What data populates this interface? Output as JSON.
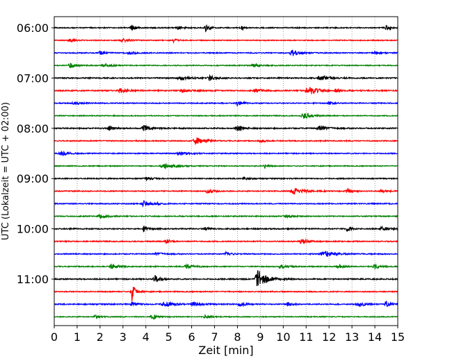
{
  "chart_data": {
    "type": "line",
    "subtype": "helicorder",
    "xlabel": "Zeit  [min]",
    "ylabel": "UTC (Lokalzeit = UTC + 02:00)",
    "xlim": [
      0,
      15
    ],
    "x_ticks": [
      "0",
      "1",
      "2",
      "3",
      "4",
      "5",
      "6",
      "7",
      "8",
      "9",
      "10",
      "11",
      "12",
      "13",
      "14",
      "15"
    ],
    "y_ticks": [
      {
        "label": "06:00",
        "row": 0
      },
      {
        "label": "07:00",
        "row": 4
      },
      {
        "label": "08:00",
        "row": 8
      },
      {
        "label": "09:00",
        "row": 12
      },
      {
        "label": "10:00",
        "row": 16
      },
      {
        "label": "11:00",
        "row": 20
      }
    ],
    "grid": "vertical dotted lines at each minute",
    "row_interval_minutes": 15,
    "row_colors": [
      "#000000",
      "#ff0000",
      "#0000ff",
      "#008000"
    ],
    "rows": [
      {
        "noise": 0.7,
        "events": [
          {
            "t": 3.4,
            "a": 4.5,
            "d": 0.4
          },
          {
            "t": 5.4,
            "a": 2.0,
            "d": 0.5
          },
          {
            "t": 6.6,
            "a": 5.5,
            "d": 0.3
          },
          {
            "t": 8.2,
            "a": 5.5,
            "d": 0.15
          },
          {
            "t": 14.5,
            "a": 4.5,
            "d": 0.3
          }
        ]
      },
      {
        "noise": 0.6,
        "events": [
          {
            "t": 0.7,
            "a": 2.0,
            "d": 0.5
          },
          {
            "t": 3.0,
            "a": 2.5,
            "d": 0.6
          },
          {
            "t": 5.2,
            "a": 3.0,
            "d": 0.3
          }
        ]
      },
      {
        "noise": 0.7,
        "events": [
          {
            "t": 2.0,
            "a": 3.0,
            "d": 0.4
          },
          {
            "t": 3.3,
            "a": 2.0,
            "d": 0.6
          },
          {
            "t": 10.4,
            "a": 4.5,
            "d": 0.6
          },
          {
            "t": 14.0,
            "a": 2.5,
            "d": 0.5
          }
        ]
      },
      {
        "noise": 0.6,
        "events": [
          {
            "t": 0.7,
            "a": 3.5,
            "d": 0.5
          },
          {
            "t": 2.2,
            "a": 2.5,
            "d": 0.6
          },
          {
            "t": 8.7,
            "a": 2.5,
            "d": 0.6
          }
        ]
      },
      {
        "noise": 0.8,
        "events": [
          {
            "t": 5.5,
            "a": 2.5,
            "d": 0.8
          },
          {
            "t": 6.8,
            "a": 3.5,
            "d": 0.5
          },
          {
            "t": 11.6,
            "a": 4.0,
            "d": 0.6
          }
        ]
      },
      {
        "noise": 0.8,
        "events": [
          {
            "t": 2.9,
            "a": 3.0,
            "d": 0.6
          },
          {
            "t": 5.6,
            "a": 2.5,
            "d": 0.5
          },
          {
            "t": 8.8,
            "a": 2.5,
            "d": 0.6
          },
          {
            "t": 11.1,
            "a": 7.0,
            "d": 0.7
          },
          {
            "t": 12.3,
            "a": 3.0,
            "d": 0.4
          }
        ]
      },
      {
        "noise": 0.7,
        "events": [
          {
            "t": 0.9,
            "a": 2.0,
            "d": 0.6
          },
          {
            "t": 8.0,
            "a": 4.0,
            "d": 0.4
          },
          {
            "t": 12.0,
            "a": 2.0,
            "d": 0.4
          }
        ]
      },
      {
        "noise": 0.6,
        "events": [
          {
            "t": 10.9,
            "a": 4.0,
            "d": 0.6
          }
        ]
      },
      {
        "noise": 0.8,
        "events": [
          {
            "t": 2.4,
            "a": 3.0,
            "d": 0.4
          },
          {
            "t": 3.9,
            "a": 4.5,
            "d": 0.5
          },
          {
            "t": 8.0,
            "a": 3.5,
            "d": 0.5
          },
          {
            "t": 11.6,
            "a": 4.0,
            "d": 0.7
          }
        ]
      },
      {
        "noise": 0.7,
        "events": [
          {
            "t": 6.2,
            "a": 5.0,
            "d": 0.7
          },
          {
            "t": 9.0,
            "a": 2.5,
            "d": 0.4
          }
        ]
      },
      {
        "noise": 0.7,
        "events": [
          {
            "t": 0.3,
            "a": 4.0,
            "d": 0.6
          },
          {
            "t": 5.5,
            "a": 2.5,
            "d": 0.8
          }
        ]
      },
      {
        "noise": 0.6,
        "events": [
          {
            "t": 4.8,
            "a": 4.5,
            "d": 0.8
          },
          {
            "t": 9.2,
            "a": 3.0,
            "d": 0.3
          }
        ]
      },
      {
        "noise": 0.7,
        "events": [
          {
            "t": 4.0,
            "a": 2.5,
            "d": 0.5
          },
          {
            "t": 8.3,
            "a": 2.5,
            "d": 0.5
          }
        ]
      },
      {
        "noise": 0.7,
        "events": [
          {
            "t": 6.7,
            "a": 3.0,
            "d": 0.5
          },
          {
            "t": 10.5,
            "a": 4.5,
            "d": 0.9
          },
          {
            "t": 12.8,
            "a": 3.0,
            "d": 0.5
          },
          {
            "t": 14.3,
            "a": 2.0,
            "d": 0.5
          }
        ]
      },
      {
        "noise": 0.7,
        "events": [
          {
            "t": 3.9,
            "a": 4.5,
            "d": 0.5
          },
          {
            "t": 4.4,
            "a": 2.0,
            "d": 0.4
          }
        ]
      },
      {
        "noise": 0.7,
        "events": [
          {
            "t": 2.0,
            "a": 3.0,
            "d": 0.6
          },
          {
            "t": 10.1,
            "a": 2.5,
            "d": 0.5
          }
        ]
      },
      {
        "noise": 0.8,
        "events": [
          {
            "t": 3.9,
            "a": 4.0,
            "d": 0.4
          },
          {
            "t": 6.6,
            "a": 2.0,
            "d": 0.3
          },
          {
            "t": 12.8,
            "a": 4.5,
            "d": 0.3
          },
          {
            "t": 14.3,
            "a": 2.5,
            "d": 0.5
          }
        ]
      },
      {
        "noise": 0.7,
        "events": [
          {
            "t": 4.9,
            "a": 4.0,
            "d": 0.3
          },
          {
            "t": 10.8,
            "a": 5.0,
            "d": 0.5
          }
        ]
      },
      {
        "noise": 0.7,
        "events": [
          {
            "t": 4.5,
            "a": 2.0,
            "d": 0.6
          },
          {
            "t": 7.5,
            "a": 3.5,
            "d": 0.4
          },
          {
            "t": 11.8,
            "a": 5.0,
            "d": 0.8
          }
        ]
      },
      {
        "noise": 0.7,
        "events": [
          {
            "t": 2.5,
            "a": 4.0,
            "d": 0.5
          },
          {
            "t": 5.8,
            "a": 3.0,
            "d": 0.6
          },
          {
            "t": 9.9,
            "a": 3.0,
            "d": 0.6
          },
          {
            "t": 12.4,
            "a": 2.5,
            "d": 0.5
          },
          {
            "t": 14.0,
            "a": 3.0,
            "d": 0.5
          }
        ]
      },
      {
        "noise": 0.8,
        "events": [
          {
            "t": 4.4,
            "a": 5.5,
            "d": 0.4
          },
          {
            "t": 8.9,
            "a": 13.0,
            "d": 0.7
          }
        ]
      },
      {
        "noise": 0.7,
        "events": [
          {
            "t": 3.4,
            "a": 14.0,
            "d": 0.3
          }
        ]
      },
      {
        "noise": 0.8,
        "events": [
          {
            "t": 3.4,
            "a": 3.5,
            "d": 0.4
          },
          {
            "t": 4.8,
            "a": 4.0,
            "d": 0.8
          },
          {
            "t": 6.1,
            "a": 3.0,
            "d": 0.6
          },
          {
            "t": 8.1,
            "a": 3.5,
            "d": 0.4
          },
          {
            "t": 10.2,
            "a": 3.5,
            "d": 0.3
          },
          {
            "t": 13.3,
            "a": 4.0,
            "d": 0.5
          },
          {
            "t": 14.5,
            "a": 3.5,
            "d": 0.4
          }
        ]
      },
      {
        "noise": 0.6,
        "events": [
          {
            "t": 1.8,
            "a": 2.5,
            "d": 0.4
          },
          {
            "t": 4.3,
            "a": 3.5,
            "d": 0.5
          },
          {
            "t": 6.6,
            "a": 2.5,
            "d": 0.5
          }
        ]
      }
    ]
  }
}
